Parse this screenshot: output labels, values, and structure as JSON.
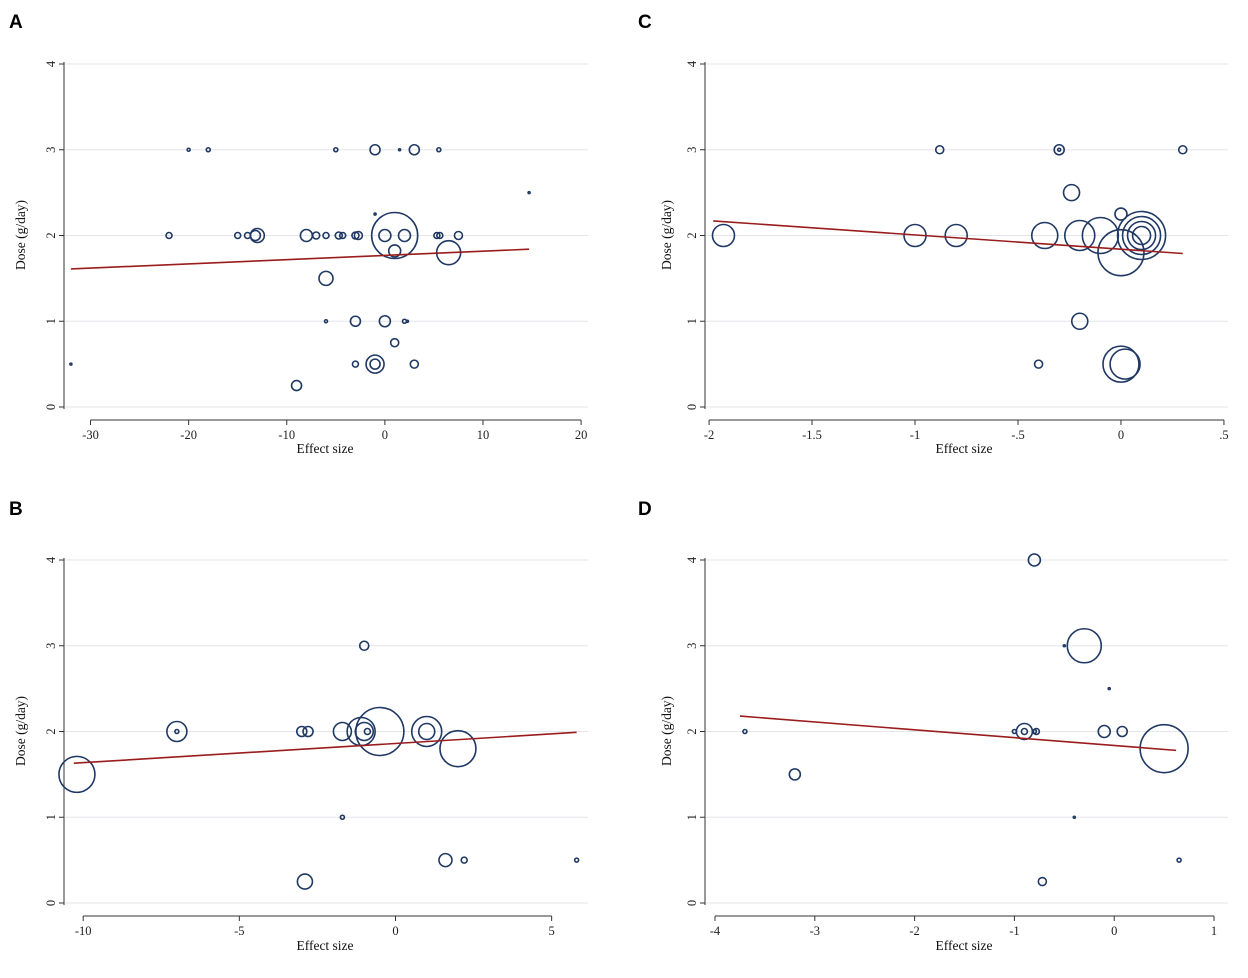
{
  "colors": {
    "bubble": "#1f3864",
    "fit_line": "#9b1c1c",
    "grid": "#e3e6ea",
    "axis": "#333333"
  },
  "chart_data": [
    {
      "id": "A",
      "type": "scatter",
      "title": "A",
      "xlabel": "Effect size",
      "ylabel": "Dose (g/day)",
      "xlim": [
        -32.5,
        20.5
      ],
      "ylim": [
        -0.1,
        4.1
      ],
      "xticks": [
        -30,
        -20,
        -10,
        0,
        10,
        20
      ],
      "xtick_labels": [
        "-30",
        "-20",
        "-10",
        "0",
        "10",
        "20"
      ],
      "yticks": [
        0,
        1,
        2,
        3,
        4
      ],
      "ytick_labels": [
        "0",
        "1",
        "2",
        "3",
        "4"
      ],
      "grid": true,
      "fit_line": {
        "x": [
          -32,
          14.7
        ],
        "y": [
          1.61,
          1.84
        ]
      },
      "points": [
        {
          "x": -32,
          "y": 0.5,
          "r": 1
        },
        {
          "x": -20,
          "y": 3,
          "r": 1.5
        },
        {
          "x": -18,
          "y": 3,
          "r": 2
        },
        {
          "x": -5,
          "y": 3,
          "r": 2
        },
        {
          "x": -1,
          "y": 3,
          "r": 5
        },
        {
          "x": 1.5,
          "y": 3,
          "r": 1
        },
        {
          "x": 3,
          "y": 3,
          "r": 5
        },
        {
          "x": 5.5,
          "y": 3,
          "r": 2
        },
        {
          "x": 14.7,
          "y": 2.5,
          "r": 1
        },
        {
          "x": -22,
          "y": 2,
          "r": 3
        },
        {
          "x": -15,
          "y": 2,
          "r": 3
        },
        {
          "x": -14,
          "y": 2,
          "r": 3
        },
        {
          "x": -13.2,
          "y": 2,
          "r": 5
        },
        {
          "x": -13,
          "y": 2,
          "r": 7
        },
        {
          "x": -8,
          "y": 2,
          "r": 6
        },
        {
          "x": -7,
          "y": 2,
          "r": 3.5
        },
        {
          "x": -6,
          "y": 2,
          "r": 3
        },
        {
          "x": -4.7,
          "y": 2,
          "r": 3.5
        },
        {
          "x": -4.3,
          "y": 2,
          "r": 3
        },
        {
          "x": -3,
          "y": 2,
          "r": 3.5
        },
        {
          "x": -2.7,
          "y": 2,
          "r": 4
        },
        {
          "x": -1,
          "y": 2.25,
          "r": 1
        },
        {
          "x": 0,
          "y": 2,
          "r": 6
        },
        {
          "x": 1,
          "y": 2,
          "r": 23
        },
        {
          "x": 2,
          "y": 2,
          "r": 6
        },
        {
          "x": 5.3,
          "y": 2,
          "r": 3
        },
        {
          "x": 5.6,
          "y": 2,
          "r": 3
        },
        {
          "x": 7.5,
          "y": 2,
          "r": 4
        },
        {
          "x": 1,
          "y": 1.82,
          "r": 6
        },
        {
          "x": 6.5,
          "y": 1.8,
          "r": 12
        },
        {
          "x": -6,
          "y": 1.5,
          "r": 7
        },
        {
          "x": -6,
          "y": 1,
          "r": 1.5
        },
        {
          "x": -3,
          "y": 1,
          "r": 5
        },
        {
          "x": 0,
          "y": 1,
          "r": 5.5
        },
        {
          "x": 2,
          "y": 1,
          "r": 2
        },
        {
          "x": 2.3,
          "y": 1,
          "r": 1
        },
        {
          "x": 1,
          "y": 0.75,
          "r": 4
        },
        {
          "x": -3,
          "y": 0.5,
          "r": 3
        },
        {
          "x": -1,
          "y": 0.5,
          "r": 9
        },
        {
          "x": -1,
          "y": 0.5,
          "r": 5
        },
        {
          "x": 3,
          "y": 0.5,
          "r": 4
        },
        {
          "x": -9,
          "y": 0.25,
          "r": 5
        }
      ]
    },
    {
      "id": "B",
      "type": "scatter",
      "title": "B",
      "xlabel": "Effect size",
      "ylabel": "Dose (g/day)",
      "xlim": [
        -10.55,
        6.1
      ],
      "ylim": [
        -0.1,
        4.1
      ],
      "xticks": [
        -10,
        -5,
        0,
        5
      ],
      "xtick_labels": [
        "-10",
        "-5",
        "0",
        "5"
      ],
      "yticks": [
        0,
        1,
        2,
        3,
        4
      ],
      "ytick_labels": [
        "0",
        "1",
        "2",
        "3",
        "4"
      ],
      "grid": true,
      "fit_line": {
        "x": [
          -10.3,
          5.8
        ],
        "y": [
          1.63,
          1.99
        ]
      },
      "points": [
        {
          "x": -10.2,
          "y": 1.5,
          "r": 18
        },
        {
          "x": -7,
          "y": 2,
          "r": 10
        },
        {
          "x": -7,
          "y": 2,
          "r": 2
        },
        {
          "x": -3,
          "y": 2,
          "r": 5
        },
        {
          "x": -2.8,
          "y": 2,
          "r": 5
        },
        {
          "x": -1.7,
          "y": 2,
          "r": 9
        },
        {
          "x": -1.1,
          "y": 2,
          "r": 14
        },
        {
          "x": -1,
          "y": 2,
          "r": 9
        },
        {
          "x": -0.9,
          "y": 2,
          "r": 3
        },
        {
          "x": -1,
          "y": 3,
          "r": 4.5
        },
        {
          "x": -0.5,
          "y": 2,
          "r": 24
        },
        {
          "x": 1,
          "y": 2,
          "r": 15
        },
        {
          "x": 1,
          "y": 2,
          "r": 8
        },
        {
          "x": 2,
          "y": 1.8,
          "r": 18
        },
        {
          "x": -1.7,
          "y": 1,
          "r": 2
        },
        {
          "x": 1.6,
          "y": 0.5,
          "r": 6.5
        },
        {
          "x": 2.2,
          "y": 0.5,
          "r": 3
        },
        {
          "x": 5.8,
          "y": 0.5,
          "r": 2
        },
        {
          "x": -2.9,
          "y": 0.25,
          "r": 7.5
        }
      ]
    },
    {
      "id": "C",
      "type": "scatter",
      "title": "C",
      "xlabel": "Effect size",
      "ylabel": "Dose (g/day)",
      "xlim": [
        -2.01,
        0.51
      ],
      "ylim": [
        -0.1,
        4.1
      ],
      "xticks": [
        -2,
        -1.5,
        -1,
        -0.5,
        0,
        0.5
      ],
      "xtick_labels": [
        "-2",
        "-1.5",
        "-1",
        "-.5",
        "0",
        ".5"
      ],
      "yticks": [
        0,
        1,
        2,
        3,
        4
      ],
      "ytick_labels": [
        "0",
        "1",
        "2",
        "3",
        "4"
      ],
      "grid": true,
      "fit_line": {
        "x": [
          -1.98,
          0.3
        ],
        "y": [
          2.17,
          1.79
        ]
      },
      "points": [
        {
          "x": -0.88,
          "y": 3,
          "r": 4
        },
        {
          "x": -0.3,
          "y": 3,
          "r": 5
        },
        {
          "x": -0.3,
          "y": 3,
          "r": 1.5
        },
        {
          "x": 0.3,
          "y": 3,
          "r": 4
        },
        {
          "x": -0.24,
          "y": 2.5,
          "r": 8
        },
        {
          "x": 0,
          "y": 2.25,
          "r": 6
        },
        {
          "x": -1.93,
          "y": 2,
          "r": 11
        },
        {
          "x": -1,
          "y": 2,
          "r": 11
        },
        {
          "x": -0.8,
          "y": 2,
          "r": 11
        },
        {
          "x": -0.37,
          "y": 2,
          "r": 13
        },
        {
          "x": -0.2,
          "y": 2,
          "r": 15
        },
        {
          "x": -0.1,
          "y": 2,
          "r": 18
        },
        {
          "x": 0,
          "y": 1.8,
          "r": 23
        },
        {
          "x": 0.1,
          "y": 2,
          "r": 24
        },
        {
          "x": 0.1,
          "y": 2,
          "r": 19
        },
        {
          "x": 0.1,
          "y": 2,
          "r": 14
        },
        {
          "x": 0.1,
          "y": 2,
          "r": 9
        },
        {
          "x": -0.2,
          "y": 1,
          "r": 8
        },
        {
          "x": -0.4,
          "y": 0.5,
          "r": 4
        },
        {
          "x": 0,
          "y": 0.5,
          "r": 18
        },
        {
          "x": 0.02,
          "y": 0.5,
          "r": 15
        }
      ]
    },
    {
      "id": "D",
      "type": "scatter",
      "title": "D",
      "xlabel": "Effect size",
      "ylabel": "Dose (g/day)",
      "xlim": [
        -4.08,
        1.12
      ],
      "ylim": [
        -0.1,
        4.1
      ],
      "xticks": [
        -4,
        -3,
        -2,
        -1,
        0,
        1
      ],
      "xtick_labels": [
        "-4",
        "-3",
        "-2",
        "-1",
        "0",
        "1"
      ],
      "yticks": [
        0,
        1,
        2,
        3,
        4
      ],
      "ytick_labels": [
        "0",
        "1",
        "2",
        "3",
        "4"
      ],
      "grid": true,
      "fit_line": {
        "x": [
          -3.75,
          0.62
        ],
        "y": [
          2.18,
          1.78
        ]
      },
      "points": [
        {
          "x": -0.8,
          "y": 4,
          "r": 6
        },
        {
          "x": -0.3,
          "y": 3,
          "r": 17
        },
        {
          "x": -0.5,
          "y": 3,
          "r": 1
        },
        {
          "x": -0.05,
          "y": 2.5,
          "r": 1
        },
        {
          "x": -3.7,
          "y": 2,
          "r": 2
        },
        {
          "x": -1,
          "y": 2,
          "r": 2
        },
        {
          "x": -0.9,
          "y": 2,
          "r": 8
        },
        {
          "x": -0.9,
          "y": 2,
          "r": 3
        },
        {
          "x": -0.8,
          "y": 2,
          "r": 2
        },
        {
          "x": -0.78,
          "y": 2,
          "r": 3
        },
        {
          "x": -0.1,
          "y": 2,
          "r": 6
        },
        {
          "x": 0.08,
          "y": 2,
          "r": 5
        },
        {
          "x": 0.5,
          "y": 1.8,
          "r": 24
        },
        {
          "x": -3.2,
          "y": 1.5,
          "r": 5.5
        },
        {
          "x": -0.4,
          "y": 1,
          "r": 1
        },
        {
          "x": -0.72,
          "y": 0.25,
          "r": 4
        },
        {
          "x": 0.65,
          "y": 0.5,
          "r": 2
        }
      ]
    }
  ]
}
